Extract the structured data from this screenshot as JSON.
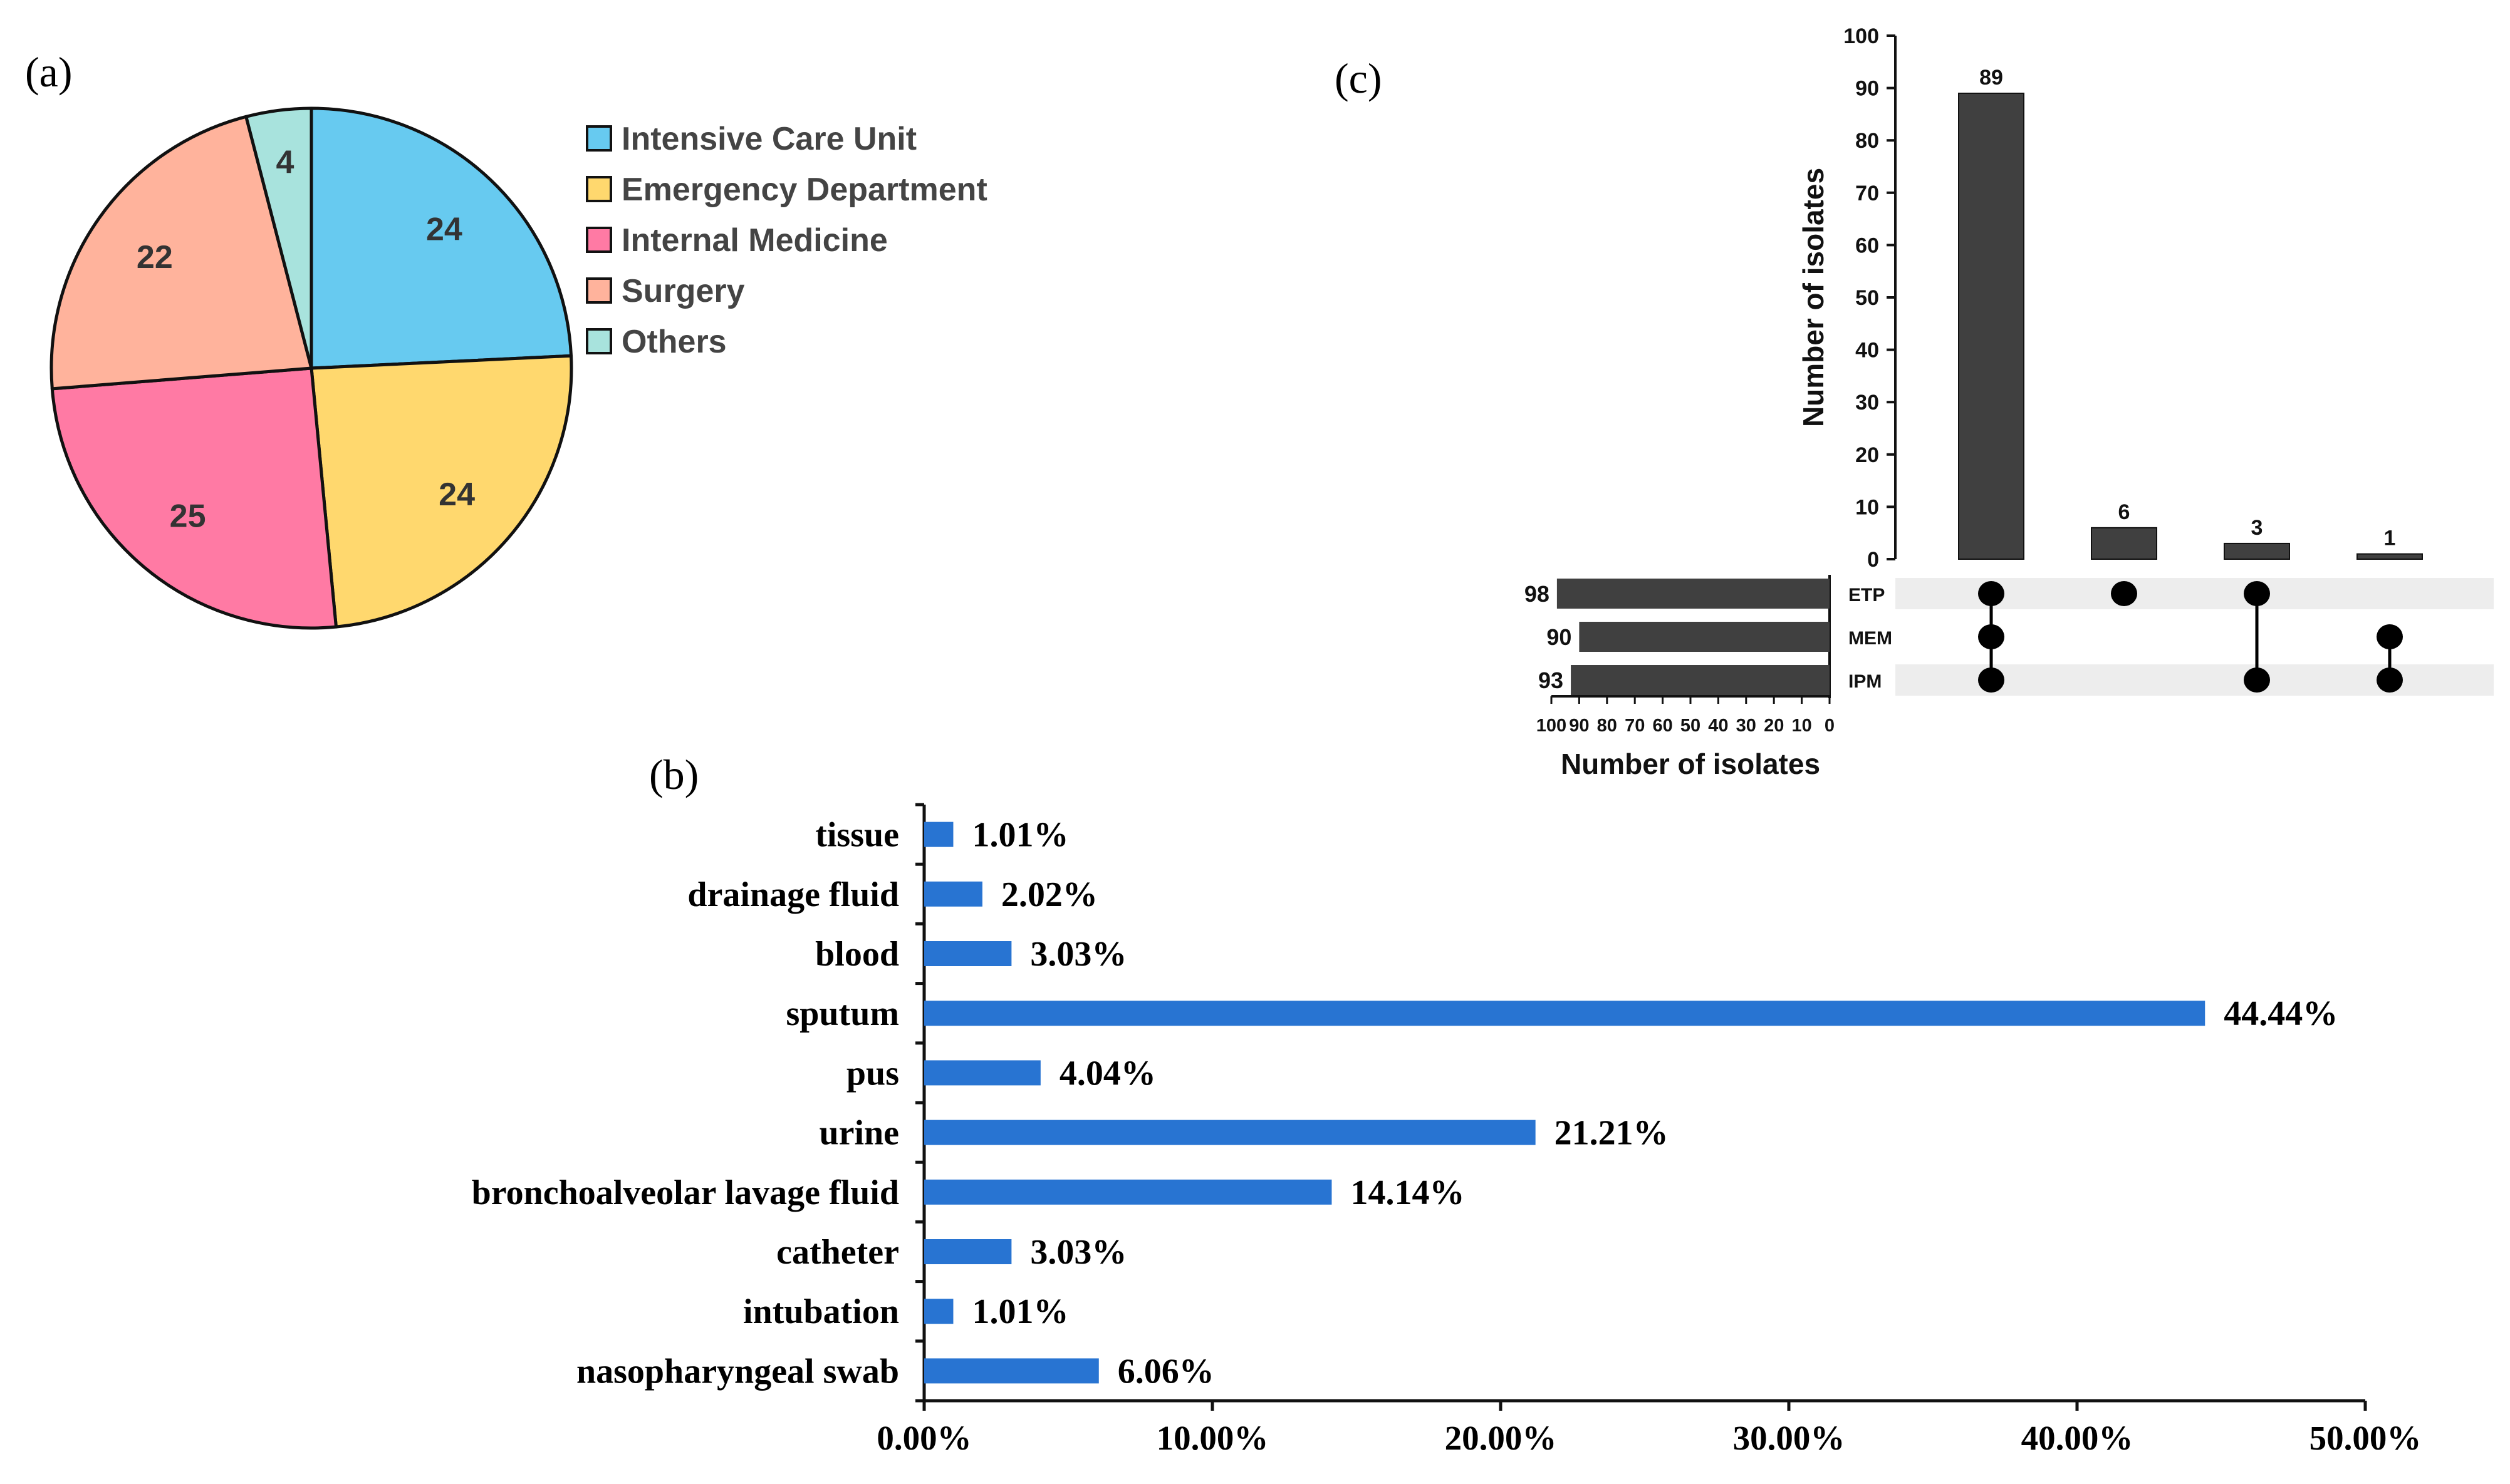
{
  "panel_a": {
    "label": "(a)",
    "chart_data": {
      "type": "pie",
      "title": "",
      "slices": [
        {
          "name": "Intensive Care Unit",
          "value": 24,
          "color": "#67CAF0"
        },
        {
          "name": "Emergency Department",
          "value": 24,
          "color": "#FFD86E"
        },
        {
          "name": "Internal Medicine",
          "value": 25,
          "color": "#FF7AA4"
        },
        {
          "name": "Surgery",
          "value": 22,
          "color": "#FFB39C"
        },
        {
          "name": "Others",
          "value": 4,
          "color": "#A8E3DD"
        }
      ],
      "legend": [
        "Intensive Care Unit",
        "Emergency Department",
        "Internal Medicine",
        "Surgery",
        "Others"
      ],
      "legend_position": "right"
    }
  },
  "panel_b": {
    "label": "(b)",
    "chart_data": {
      "type": "bar",
      "orientation": "horizontal",
      "categories": [
        "tissue",
        "drainage fluid",
        "blood",
        "sputum",
        "pus",
        "urine",
        "bronchoalveolar lavage fluid",
        "catheter",
        "intubation",
        "nasopharyngeal swab"
      ],
      "values": [
        1.01,
        2.02,
        3.03,
        44.44,
        4.04,
        21.21,
        14.14,
        3.03,
        1.01,
        6.06
      ],
      "value_labels": [
        "1.01%",
        "2.02%",
        "3.03%",
        "44.44%",
        "4.04%",
        "21.21%",
        "14.14%",
        "3.03%",
        "1.01%",
        "6.06%"
      ],
      "xlim": [
        0,
        50
      ],
      "xticks": [
        0,
        10,
        20,
        30,
        40,
        50
      ],
      "xtick_labels": [
        "0.00%",
        "10.00%",
        "20.00%",
        "30.00%",
        "40.00%",
        "50.00%"
      ],
      "bar_color": "#2874D2"
    }
  },
  "panel_c": {
    "label": "(c)",
    "chart_data": {
      "type": "upset",
      "sets": [
        "ETP",
        "MEM",
        "IPM"
      ],
      "set_sizes": [
        98,
        90,
        93
      ],
      "set_size_xlim": [
        0,
        100
      ],
      "set_size_ticks": [
        100,
        90,
        80,
        70,
        60,
        50,
        40,
        30,
        20,
        10,
        0
      ],
      "set_size_xlabel": "Number of isolates",
      "intersections": [
        {
          "members": [
            "ETP",
            "MEM",
            "IPM"
          ],
          "value": 89
        },
        {
          "members": [
            "ETP"
          ],
          "value": 6
        },
        {
          "members": [
            "ETP",
            "IPM"
          ],
          "value": 3
        },
        {
          "members": [
            "MEM",
            "IPM"
          ],
          "value": 1
        }
      ],
      "intersection_ylim": [
        0,
        100
      ],
      "intersection_yticks": [
        0,
        10,
        20,
        30,
        40,
        50,
        60,
        70,
        80,
        90,
        100
      ],
      "intersection_ylabel": "Number of isolates",
      "bar_color": "#404040"
    }
  }
}
